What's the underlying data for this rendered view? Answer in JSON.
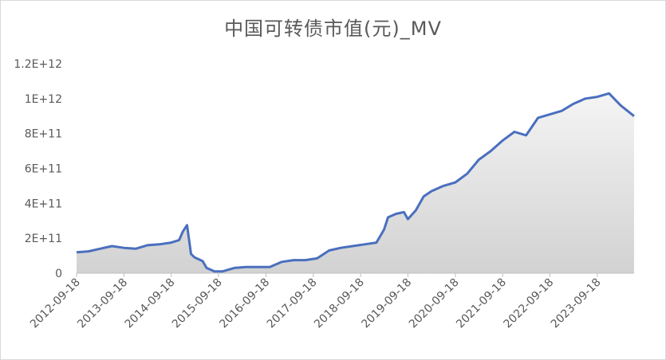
{
  "chart_data": {
    "type": "area",
    "title": "中国可转债市值(元)_MV",
    "xlabel": "",
    "ylabel": "",
    "y_tick_labels": [
      "0",
      "2E+11",
      "4E+11",
      "6E+11",
      "8E+11",
      "1E+12",
      "1.2E+12"
    ],
    "y_tick_values": [
      0,
      200000000000,
      400000000000,
      600000000000,
      800000000000,
      1000000000000,
      1200000000000
    ],
    "ylim": [
      0,
      1200000000000
    ],
    "x_tick_labels": [
      "2012-09-18",
      "2013-09-18",
      "2014-09-18",
      "2015-09-18",
      "2016-09-18",
      "2017-09-18",
      "2018-09-18",
      "2019-09-18",
      "2020-09-18",
      "2021-09-18",
      "2022-09-18",
      "2023-09-18"
    ],
    "xlim": [
      "2012-09-18",
      "2024-06-28"
    ],
    "grid": false,
    "legend": "none",
    "colors": {
      "line": "#4a6fbf",
      "fill_top": "#f4f4f4",
      "fill_bottom": "#d2d2d2",
      "axis": "#bfbfbf"
    },
    "series": [
      {
        "x": [
          "2012-09-18",
          "2012-12-18",
          "2013-03-18",
          "2013-06-18",
          "2013-09-18",
          "2013-12-18",
          "2014-03-18",
          "2014-06-18",
          "2014-09-18",
          "2014-11-18",
          "2014-12-18",
          "2015-01-18",
          "2015-02-18",
          "2015-03-18",
          "2015-05-18",
          "2015-06-18",
          "2015-08-18",
          "2015-10-18",
          "2016-01-18",
          "2016-04-18",
          "2016-07-18",
          "2016-10-18",
          "2017-01-18",
          "2017-04-18",
          "2017-07-18",
          "2017-10-18",
          "2018-01-18",
          "2018-04-18",
          "2018-07-18",
          "2018-10-18",
          "2019-01-18",
          "2019-03-18",
          "2019-04-18",
          "2019-06-18",
          "2019-08-18",
          "2019-09-18",
          "2019-11-18",
          "2020-01-18",
          "2020-03-18",
          "2020-06-18",
          "2020-09-18",
          "2020-12-18",
          "2021-03-18",
          "2021-06-18",
          "2021-09-18",
          "2021-12-18",
          "2022-03-18",
          "2022-06-18",
          "2022-09-18",
          "2022-12-18",
          "2023-03-18",
          "2023-06-18",
          "2023-09-18",
          "2023-12-18",
          "2024-03-18",
          "2024-06-28"
        ],
        "y": [
          120000000000,
          125000000000,
          140000000000,
          155000000000,
          145000000000,
          140000000000,
          160000000000,
          165000000000,
          175000000000,
          190000000000,
          240000000000,
          275000000000,
          110000000000,
          90000000000,
          70000000000,
          30000000000,
          10000000000,
          10000000000,
          30000000000,
          35000000000,
          35000000000,
          35000000000,
          65000000000,
          75000000000,
          75000000000,
          85000000000,
          130000000000,
          145000000000,
          155000000000,
          165000000000,
          175000000000,
          250000000000,
          320000000000,
          340000000000,
          350000000000,
          310000000000,
          360000000000,
          440000000000,
          470000000000,
          500000000000,
          520000000000,
          570000000000,
          650000000000,
          700000000000,
          760000000000,
          810000000000,
          790000000000,
          890000000000,
          910000000000,
          930000000000,
          970000000000,
          1000000000000,
          1010000000000,
          1030000000000,
          960000000000,
          900000000000
        ]
      }
    ]
  }
}
